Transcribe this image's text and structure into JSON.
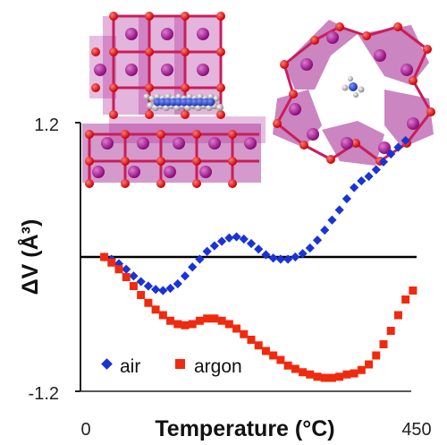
{
  "chart_data": {
    "type": "scatter",
    "xlabel": "Temperature (°C)",
    "ylabel": "ΔV (Å³)",
    "xlim": [
      0,
      450
    ],
    "ylim": [
      -1.2,
      1.2
    ],
    "x_tick_labels": [
      "0",
      "450"
    ],
    "y_tick_labels": [
      "1.2",
      "-1.2"
    ],
    "reference_line_y": 0,
    "grid": false,
    "legend_placement": "bottom-left",
    "series": [
      {
        "name": "air",
        "color": "#1a33d6",
        "marker": "diamond",
        "x": [
          25,
          35,
          45,
          55,
          65,
          75,
          85,
          95,
          105,
          115,
          125,
          135,
          145,
          155,
          165,
          175,
          185,
          195,
          205,
          215,
          225,
          235,
          245,
          255,
          265,
          275,
          285,
          295,
          305,
          315,
          325,
          335,
          345,
          355,
          365,
          375,
          385,
          395,
          405,
          415,
          425,
          435
        ],
        "y": [
          0.0,
          -0.02,
          -0.06,
          -0.11,
          -0.17,
          -0.22,
          -0.26,
          -0.29,
          -0.3,
          -0.28,
          -0.24,
          -0.17,
          -0.09,
          -0.02,
          0.05,
          0.1,
          0.14,
          0.17,
          0.18,
          0.16,
          0.12,
          0.07,
          0.02,
          -0.01,
          -0.02,
          -0.02,
          0.0,
          0.03,
          0.08,
          0.15,
          0.24,
          0.33,
          0.42,
          0.52,
          0.62,
          0.68,
          0.72,
          0.78,
          0.85,
          0.92,
          0.98,
          1.04
        ]
      },
      {
        "name": "argon",
        "color": "#f02a0f",
        "marker": "square",
        "x": [
          25,
          35,
          45,
          55,
          65,
          75,
          85,
          95,
          105,
          115,
          125,
          135,
          145,
          155,
          165,
          175,
          185,
          195,
          205,
          215,
          225,
          235,
          245,
          255,
          265,
          275,
          285,
          295,
          305,
          315,
          325,
          335,
          345,
          355,
          365,
          375,
          385,
          395,
          405,
          415,
          425,
          435,
          445
        ],
        "y": [
          0.0,
          -0.05,
          -0.11,
          -0.18,
          -0.26,
          -0.34,
          -0.41,
          -0.47,
          -0.52,
          -0.57,
          -0.6,
          -0.61,
          -0.6,
          -0.57,
          -0.55,
          -0.55,
          -0.57,
          -0.6,
          -0.64,
          -0.69,
          -0.74,
          -0.79,
          -0.84,
          -0.88,
          -0.92,
          -0.97,
          -1.0,
          -1.03,
          -1.05,
          -1.07,
          -1.08,
          -1.08,
          -1.07,
          -1.05,
          -1.04,
          -1.01,
          -0.96,
          -0.88,
          -0.78,
          -0.66,
          -0.52,
          -0.38,
          -0.3
        ]
      }
    ]
  },
  "insets": [
    {
      "name": "layered-perovskite-side-view"
    },
    {
      "name": "perovskite-cage-top-view"
    }
  ]
}
